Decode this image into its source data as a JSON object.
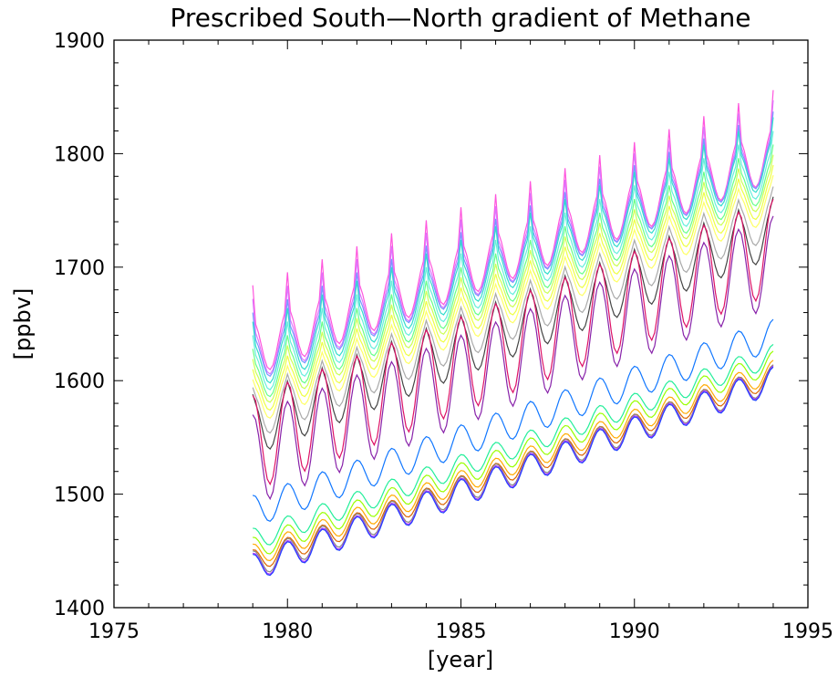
{
  "chart_data": {
    "type": "line",
    "title": "Prescribed South—North gradient of Methane",
    "xlabel": "[year]",
    "ylabel": "[ppbv]",
    "xlim": [
      1975,
      1995
    ],
    "ylim": [
      1400,
      1900
    ],
    "xticks": [
      "1975",
      "1980",
      "1985",
      "1990",
      "1995"
    ],
    "yticks": [
      "1400",
      "1500",
      "1600",
      "1700",
      "1800",
      "1900"
    ],
    "x_range": [
      1979.0,
      1994.0
    ],
    "points_per_year": 12,
    "grid": false,
    "legend": "none",
    "series": [
      {
        "color": "#ff55dd",
        "start": 1628,
        "end": 1800,
        "amplitude": 24,
        "spike": 32
      },
      {
        "color": "#dd77ff",
        "start": 1622,
        "end": 1797,
        "amplitude": 22,
        "spike": 28
      },
      {
        "color": "#7799ff",
        "start": 1618,
        "end": 1795,
        "amplitude": 20,
        "spike": 22
      },
      {
        "color": "#33ddcc",
        "start": 1612,
        "end": 1792,
        "amplitude": 20,
        "spike": 20
      },
      {
        "color": "#66eedd",
        "start": 1605,
        "end": 1785,
        "amplitude": 19,
        "spike": 16
      },
      {
        "color": "#66ff88",
        "start": 1598,
        "end": 1778,
        "amplitude": 18,
        "spike": 12
      },
      {
        "color": "#ccff55",
        "start": 1592,
        "end": 1772,
        "amplitude": 17,
        "spike": 10
      },
      {
        "color": "#eeff44",
        "start": 1585,
        "end": 1765,
        "amplitude": 17,
        "spike": 8
      },
      {
        "color": "#ffff66",
        "start": 1578,
        "end": 1758,
        "amplitude": 17,
        "spike": 6
      },
      {
        "color": "#aaaaaa",
        "start": 1568,
        "end": 1745,
        "amplitude": 20,
        "spike": 6
      },
      {
        "color": "#444444",
        "start": 1558,
        "end": 1732,
        "amplitude": 24,
        "spike": 6
      },
      {
        "color": "#dd1166",
        "start": 1545,
        "end": 1718,
        "amplitude": 42,
        "spike": 0
      },
      {
        "color": "#8822aa",
        "start": 1530,
        "end": 1705,
        "amplitude": 40,
        "spike": 0
      },
      {
        "color": "#1177ff",
        "start": 1485,
        "end": 1640,
        "amplitude": 14,
        "spike": 0
      },
      {
        "color": "#22ee99",
        "start": 1460,
        "end": 1622,
        "amplitude": 10,
        "spike": 0
      },
      {
        "color": "#99ff00",
        "start": 1452,
        "end": 1616,
        "amplitude": 10,
        "spike": 0
      },
      {
        "color": "#ffaa00",
        "start": 1446,
        "end": 1608,
        "amplitude": 10,
        "spike": 0
      },
      {
        "color": "#dd6600",
        "start": 1441,
        "end": 1604,
        "amplitude": 10,
        "spike": 0
      },
      {
        "color": "#888888",
        "start": 1438,
        "end": 1602,
        "amplitude": 12,
        "spike": 0
      },
      {
        "color": "#aa33ff",
        "start": 1436,
        "end": 1601,
        "amplitude": 12,
        "spike": 0
      },
      {
        "color": "#2244ff",
        "start": 1435,
        "end": 1600,
        "amplitude": 12,
        "spike": 0
      }
    ]
  }
}
